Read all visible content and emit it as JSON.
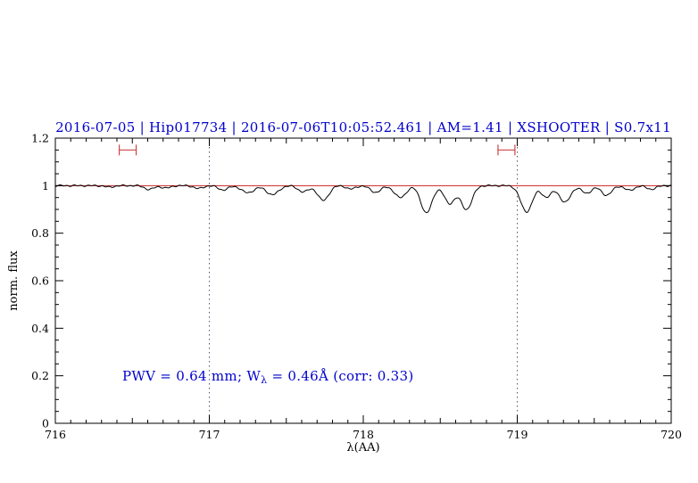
{
  "header": {
    "title": "2016-07-05 | Hip017734 | 2016-07-06T10:05:52.461 | AM=1.41 | XSHOOTER | S0.7x11"
  },
  "annotation": {
    "prefix": "PWV = 0.64 mm; W",
    "sub": "λ",
    "suffix": " = 0.46Å (corr: 0.33)"
  },
  "colors": {
    "accent": "#0000cd",
    "spectrum": "#000000",
    "continuum": "#cc2222",
    "marker": "#cc4444",
    "vline": "#555577",
    "frame": "#000000"
  },
  "chart_data": {
    "type": "line",
    "title": "2016-07-05 | Hip017734 | 2016-07-06T10:05:52.461 | AM=1.41 | XSHOOTER | S0.7x11",
    "xlabel": "λ(AA)",
    "ylabel": "norm. flux",
    "xlim": [
      716,
      720
    ],
    "ylim": [
      0,
      1.2
    ],
    "x_ticks": [
      716,
      717,
      718,
      719,
      720
    ],
    "x_tick_labels": [
      "716",
      "717",
      "718",
      "719",
      "720"
    ],
    "y_ticks": [
      0,
      0.2,
      0.4,
      0.6,
      0.8,
      1,
      1.2
    ],
    "y_tick_labels": [
      "0",
      "0.2",
      "0.4",
      "0.6",
      "0.8",
      "1",
      "1.2"
    ],
    "grid": false,
    "continuum_level": 1.0,
    "vlines": [
      717,
      719
    ],
    "region_markers": [
      {
        "center": 716.47,
        "halfwidth": 0.055,
        "y": 1.15
      },
      {
        "center": 718.93,
        "halfwidth": 0.055,
        "y": 1.15
      }
    ],
    "sampling_step": 0.005,
    "absorption_lines": [
      [
        716.35,
        0.006,
        0.03
      ],
      [
        716.61,
        0.016,
        0.03
      ],
      [
        716.72,
        0.01,
        0.03
      ],
      [
        716.93,
        0.012,
        0.03
      ],
      [
        717.09,
        0.018,
        0.032
      ],
      [
        717.25,
        0.03,
        0.04
      ],
      [
        717.41,
        0.038,
        0.04
      ],
      [
        717.61,
        0.026,
        0.034
      ],
      [
        717.74,
        0.062,
        0.036
      ],
      [
        717.92,
        0.014,
        0.03
      ],
      [
        718.08,
        0.028,
        0.034
      ],
      [
        718.24,
        0.05,
        0.038
      ],
      [
        718.41,
        0.115,
        0.036
      ],
      [
        718.56,
        0.075,
        0.034
      ],
      [
        718.67,
        0.1,
        0.036
      ],
      [
        719.06,
        0.11,
        0.038
      ],
      [
        719.19,
        0.048,
        0.032
      ],
      [
        719.31,
        0.07,
        0.036
      ],
      [
        719.45,
        0.032,
        0.032
      ],
      [
        719.58,
        0.04,
        0.034
      ],
      [
        719.73,
        0.02,
        0.03
      ],
      [
        719.87,
        0.015,
        0.03
      ]
    ]
  }
}
